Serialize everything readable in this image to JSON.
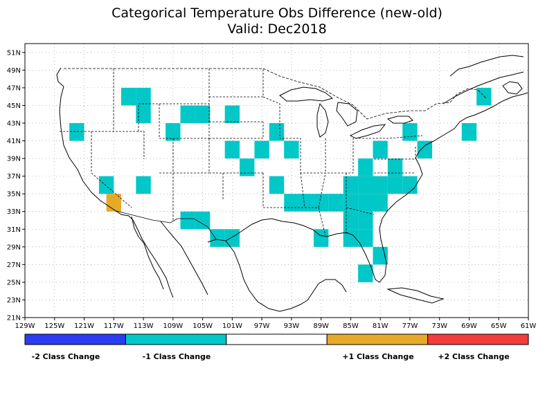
{
  "title": "Categorical Temperature Obs Difference (new-old)",
  "subtitle": "Valid: Dec2018",
  "lon_ticks": [
    "129W",
    "125W",
    "121W",
    "117W",
    "113W",
    "109W",
    "105W",
    "101W",
    "97W",
    "93W",
    "89W",
    "85W",
    "81W",
    "77W",
    "73W",
    "69W",
    "65W",
    "61W"
  ],
  "lat_ticks": [
    "51N",
    "49N",
    "47N",
    "45N",
    "43N",
    "41N",
    "39N",
    "37N",
    "35N",
    "33N",
    "31N",
    "29N",
    "27N",
    "25N",
    "23N",
    "21N"
  ],
  "legend": [
    {
      "label": "-2 Class Change",
      "color": "#2a3cf5",
      "value": -2
    },
    {
      "label": "-1 Class Change",
      "color": "#00c8c8",
      "value": -1
    },
    {
      "label": "",
      "color": "#ffffff",
      "value": 0
    },
    {
      "label": "+1 Class Change",
      "color": "#e6aa28",
      "value": 1
    },
    {
      "label": "+2 Class Change",
      "color": "#f53c3c",
      "value": 2
    }
  ],
  "colors": {
    "minus1": "#00c8c8",
    "plus1": "#e6aa28"
  },
  "cells_minus1": [
    [
      122,
      42
    ],
    [
      118,
      36
    ],
    [
      115,
      46
    ],
    [
      113,
      46
    ],
    [
      113,
      44
    ],
    [
      113,
      36
    ],
    [
      109,
      42
    ],
    [
      107,
      44
    ],
    [
      105,
      44
    ],
    [
      101,
      44
    ],
    [
      101,
      40
    ],
    [
      99,
      38
    ],
    [
      97,
      40
    ],
    [
      95,
      42
    ],
    [
      93,
      40
    ],
    [
      95,
      36
    ],
    [
      93,
      34
    ],
    [
      91,
      34
    ],
    [
      89,
      34
    ],
    [
      87,
      34
    ],
    [
      89,
      30
    ],
    [
      107,
      32
    ],
    [
      105,
      32
    ],
    [
      103,
      30
    ],
    [
      101,
      30
    ],
    [
      83,
      38
    ],
    [
      79,
      38
    ],
    [
      81,
      40
    ],
    [
      75,
      40
    ],
    [
      77,
      42
    ],
    [
      69,
      42
    ],
    [
      67,
      46
    ],
    [
      85,
      36
    ],
    [
      83,
      36
    ],
    [
      81,
      36
    ],
    [
      79,
      36
    ],
    [
      77,
      36
    ],
    [
      85,
      34
    ],
    [
      83,
      34
    ],
    [
      81,
      34
    ],
    [
      85,
      32
    ],
    [
      83,
      32
    ],
    [
      85,
      30
    ],
    [
      83,
      30
    ],
    [
      81,
      28
    ],
    [
      83,
      26
    ]
  ],
  "cells_plus1": [
    [
      117,
      34
    ]
  ]
}
